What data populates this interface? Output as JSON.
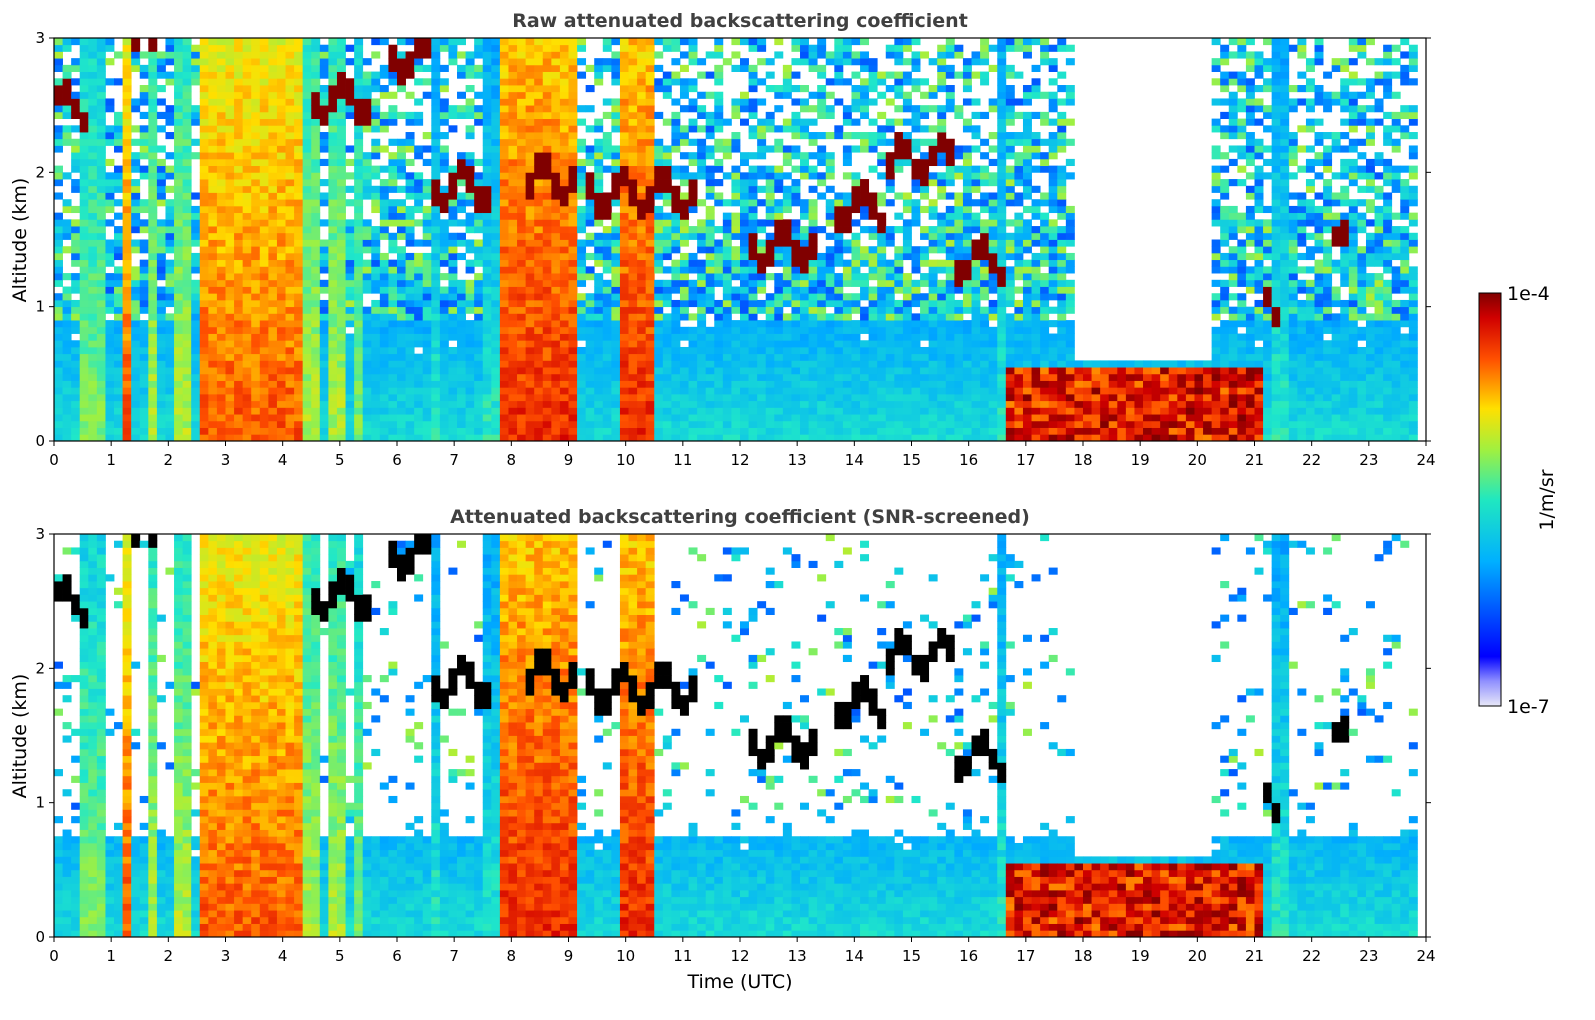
{
  "chart_data": [
    {
      "type": "heatmap",
      "title": "Raw attenuated backscattering coefficient",
      "xlabel": "",
      "ylabel": "Altitude (km)",
      "xlim": [
        0,
        24
      ],
      "ylim": [
        0,
        3
      ],
      "x_ticks": [
        "0",
        "1",
        "2",
        "3",
        "4",
        "5",
        "6",
        "7",
        "8",
        "9",
        "10",
        "11",
        "12",
        "13",
        "14",
        "15",
        "16",
        "17",
        "18",
        "19",
        "20",
        "21",
        "22",
        "23",
        "24"
      ],
      "y_ticks": [
        "0",
        "1",
        "2",
        "3"
      ],
      "data_end_hour": 23.85,
      "screened": false,
      "features": {
        "columns": [
          {
            "x0": 0.45,
            "x1": 0.95,
            "level": 0.55
          },
          {
            "x0": 1.2,
            "x1": 1.35,
            "level": 0.8
          },
          {
            "x0": 1.6,
            "x1": 1.85,
            "level": 0.6
          },
          {
            "x0": 2.1,
            "x1": 2.35,
            "level": 0.6
          },
          {
            "x0": 2.55,
            "x1": 4.3,
            "level": 0.8
          },
          {
            "x0": 4.4,
            "x1": 4.7,
            "level": 0.6
          },
          {
            "x0": 4.85,
            "x1": 5.05,
            "level": 0.6
          },
          {
            "x0": 5.2,
            "x1": 5.45,
            "level": 0.55
          },
          {
            "x0": 6.65,
            "x1": 6.75,
            "level": 0.45
          },
          {
            "x0": 7.55,
            "x1": 7.75,
            "level": 0.45
          },
          {
            "x0": 7.8,
            "x1": 9.15,
            "level": 0.85
          },
          {
            "x0": 9.95,
            "x1": 10.5,
            "level": 0.85
          },
          {
            "x0": 16.55,
            "x1": 16.65,
            "level": 0.45
          },
          {
            "x0": 21.35,
            "x1": 21.6,
            "level": 0.45
          }
        ],
        "cloud_layers": [
          {
            "x0": 0.0,
            "x1": 0.65,
            "alt": 2.5
          },
          {
            "x0": 1.4,
            "x1": 1.8,
            "alt": 2.97
          },
          {
            "x0": 4.5,
            "x1": 5.6,
            "alt": 2.55
          },
          {
            "x0": 5.9,
            "x1": 6.6,
            "alt": 2.85
          },
          {
            "x0": 6.6,
            "x1": 7.7,
            "alt": 1.9
          },
          {
            "x0": 8.3,
            "x1": 9.2,
            "alt": 1.95
          },
          {
            "x0": 9.3,
            "x1": 11.2,
            "alt": 1.85
          },
          {
            "x0": 12.2,
            "x1": 13.3,
            "alt": 1.45
          },
          {
            "x0": 13.6,
            "x1": 14.6,
            "alt": 1.75
          },
          {
            "x0": 14.6,
            "x1": 15.8,
            "alt": 2.1
          },
          {
            "x0": 15.8,
            "x1": 16.6,
            "alt": 1.35
          },
          {
            "x0": 16.8,
            "x1": 18.1,
            "alt": 0.3
          },
          {
            "x0": 18.1,
            "x1": 19.3,
            "alt": 0.2
          },
          {
            "x0": 19.3,
            "x1": 21.2,
            "alt": 0.3
          },
          {
            "x0": 21.2,
            "x1": 21.5,
            "alt": 1.0
          },
          {
            "x0": 22.4,
            "x1": 22.7,
            "alt": 1.45
          }
        ],
        "clear_sky_gap": [
          17.8,
          20.2
        ]
      }
    },
    {
      "type": "heatmap",
      "title": "Attenuated backscattering coefficient (SNR-screened)",
      "xlabel": "Time (UTC)",
      "ylabel": "Altitude (km)",
      "xlim": [
        0,
        24
      ],
      "ylim": [
        0,
        3
      ],
      "x_ticks": [
        "0",
        "1",
        "2",
        "3",
        "4",
        "5",
        "6",
        "7",
        "8",
        "9",
        "10",
        "11",
        "12",
        "13",
        "14",
        "15",
        "16",
        "17",
        "18",
        "19",
        "20",
        "21",
        "22",
        "23",
        "24"
      ],
      "y_ticks": [
        "0",
        "1",
        "2",
        "3"
      ],
      "data_end_hour": 23.85,
      "screened": true
    }
  ],
  "colorbar": {
    "label": "1/m/sr",
    "max_label": "1e-4",
    "min_label": "1e-7",
    "scale": "log",
    "colormap": "jet"
  }
}
